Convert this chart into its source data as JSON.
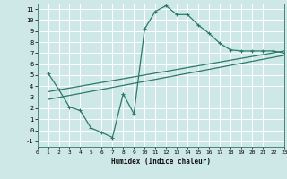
{
  "xlabel": "Humidex (Indice chaleur)",
  "xlim": [
    0,
    23
  ],
  "ylim": [
    -1.5,
    11.5
  ],
  "xticks": [
    0,
    1,
    2,
    3,
    4,
    5,
    6,
    7,
    8,
    9,
    10,
    11,
    12,
    13,
    14,
    15,
    16,
    17,
    18,
    19,
    20,
    21,
    22,
    23
  ],
  "yticks": [
    -1,
    0,
    1,
    2,
    3,
    4,
    5,
    6,
    7,
    8,
    9,
    10,
    11
  ],
  "bg_color": "#cee8e8",
  "grid_color": "#ffffff",
  "line_color": "#2a7a6a",
  "curve1_x": [
    1,
    2,
    3,
    4,
    5,
    6,
    7,
    8,
    9,
    10,
    11,
    12,
    13,
    14,
    15,
    16,
    17,
    18,
    19,
    20,
    21,
    22,
    23
  ],
  "curve1_y": [
    5.2,
    3.7,
    2.1,
    1.8,
    0.2,
    -0.2,
    -0.65,
    3.3,
    1.5,
    9.2,
    10.8,
    11.3,
    10.5,
    10.5,
    9.55,
    8.8,
    7.9,
    7.3,
    7.2,
    7.2,
    7.2,
    7.2,
    7.0
  ],
  "curve2_x": [
    1,
    23
  ],
  "curve2_y": [
    3.5,
    7.2
  ],
  "curve3_x": [
    1,
    23
  ],
  "curve3_y": [
    2.8,
    6.8
  ]
}
